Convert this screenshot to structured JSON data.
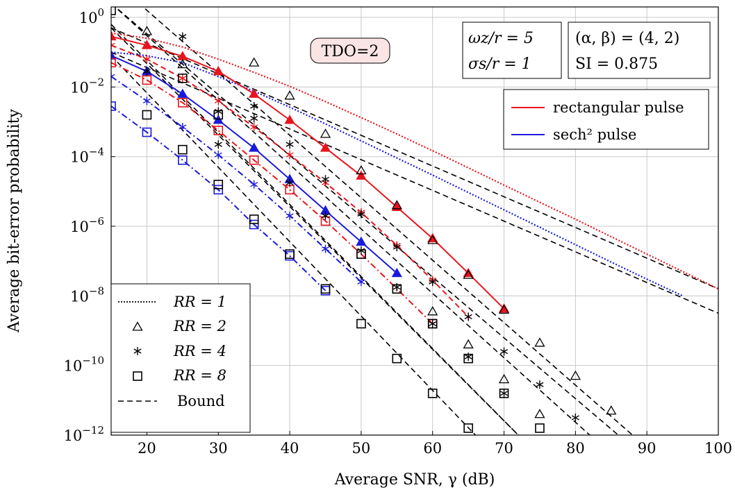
{
  "chart_data": {
    "type": "line",
    "xlabel": "Average SNR, γ (dB)",
    "ylabel": "Average bit-error probability",
    "xlim": [
      15,
      100
    ],
    "ylim_exp": [
      -12,
      0.3
    ],
    "yscale": "log",
    "grid": true,
    "x_ticks": [
      "20",
      "30",
      "40",
      "50",
      "60",
      "70",
      "80",
      "90",
      "100"
    ],
    "x_tick_values": [
      20,
      30,
      40,
      50,
      60,
      70,
      80,
      90,
      100
    ],
    "y_ticks": [
      {
        "base": "10",
        "exp": "0",
        "value_exp": 0
      },
      {
        "base": "10",
        "exp": "−2",
        "value_exp": -2
      },
      {
        "base": "10",
        "exp": "−4",
        "value_exp": -4
      },
      {
        "base": "10",
        "exp": "−6",
        "value_exp": -6
      },
      {
        "base": "10",
        "exp": "−8",
        "value_exp": -8
      },
      {
        "base": "10",
        "exp": "−10",
        "value_exp": -10
      },
      {
        "base": "10",
        "exp": "−12",
        "value_exp": -12
      }
    ],
    "annotations": {
      "tdo": "TDO=2",
      "param1_line1": "ωz/r = 5",
      "param1_line2": "σs/r = 1",
      "param2_line1": "(α, β) = (4, 2)",
      "param2_line2": "SI = 0.875"
    },
    "legend_color": [
      {
        "label": "rectangular pulse",
        "color": "#e8141c"
      },
      {
        "label": "sech² pulse",
        "color": "#1a1adc"
      }
    ],
    "legend_marker": [
      {
        "label": "RR = 1",
        "style": "dotted"
      },
      {
        "label": "RR = 2",
        "style": "triangle"
      },
      {
        "label": "RR = 4",
        "style": "asterisk"
      },
      {
        "label": "RR = 8",
        "style": "square"
      },
      {
        "label": "Bound",
        "style": "dashed"
      }
    ],
    "series": [
      {
        "color": "#e8141c",
        "rr": "1",
        "dash": "dotted",
        "marker": "none",
        "x": [
          15,
          20,
          25,
          30,
          35,
          40,
          45,
          50,
          55,
          60,
          65,
          70,
          75,
          80,
          85,
          90,
          95,
          100
        ],
        "log_y": [
          -0.45,
          -0.6,
          -0.85,
          -1.2,
          -1.58,
          -1.98,
          -2.42,
          -2.88,
          -3.35,
          -3.83,
          -4.32,
          -4.82,
          -5.31,
          -5.8,
          -6.3,
          -6.8,
          -7.3,
          -7.8
        ]
      },
      {
        "color": "#1a1adc",
        "rr": "1",
        "dash": "dotted",
        "marker": "none",
        "x": [
          15,
          20,
          25,
          30,
          35,
          40,
          45,
          50,
          55,
          60,
          65,
          70,
          75,
          80,
          85,
          90,
          95
        ],
        "log_y": [
          -1.0,
          -1.1,
          -1.3,
          -1.7,
          -2.12,
          -2.58,
          -3.06,
          -3.55,
          -4.04,
          -4.53,
          -5.03,
          -5.53,
          -6.03,
          -6.53,
          -7.03,
          -7.52,
          -8.0
        ]
      },
      {
        "color": "#e8141c",
        "rr": "2",
        "dash": "solid",
        "marker": "triangle",
        "x": [
          15,
          20,
          25,
          30,
          35,
          40,
          45,
          50,
          55,
          60,
          65,
          70
        ],
        "log_y": [
          -0.55,
          -0.8,
          -1.12,
          -1.55,
          -2.2,
          -2.95,
          -3.75,
          -4.55,
          -5.45,
          -6.35,
          -7.35,
          -8.37
        ]
      },
      {
        "color": "#1a1adc",
        "rr": "2",
        "dash": "solid",
        "marker": "triangle",
        "x": [
          15,
          20,
          25,
          30,
          35,
          40,
          45,
          50,
          55
        ],
        "log_y": [
          -1.1,
          -1.55,
          -2.2,
          -2.95,
          -3.75,
          -4.65,
          -5.55,
          -6.45,
          -7.35
        ]
      },
      {
        "color": "#e8141c",
        "rr": "4",
        "dash": "dashed",
        "marker": "asterisk",
        "x": [
          15,
          20,
          25,
          30,
          35,
          40,
          45,
          50,
          55,
          60,
          65
        ],
        "log_y": [
          -0.8,
          -1.2,
          -1.75,
          -2.4,
          -3.15,
          -3.95,
          -4.75,
          -5.6,
          -6.55,
          -7.55,
          -8.6
        ]
      },
      {
        "color": "#1a1adc",
        "rr": "4",
        "dash": "dashdot",
        "marker": "asterisk",
        "x": [
          15,
          20,
          25,
          30,
          35,
          40,
          45,
          50
        ],
        "log_y": [
          -1.7,
          -2.4,
          -3.15,
          -3.95,
          -4.8,
          -5.7,
          -6.65,
          -7.6
        ]
      },
      {
        "color": "#e8141c",
        "rr": "8",
        "dash": "dashdot",
        "marker": "square",
        "x": [
          15,
          20,
          25,
          30,
          35,
          40,
          45,
          50,
          55,
          60
        ],
        "log_y": [
          -1.3,
          -1.8,
          -2.45,
          -3.25,
          -4.1,
          -4.95,
          -5.85,
          -6.8,
          -7.8,
          -8.8
        ]
      },
      {
        "color": "#1a1adc",
        "rr": "8",
        "dash": "dashdot",
        "marker": "square",
        "x": [
          15,
          20,
          25,
          30,
          35,
          40,
          45
        ],
        "log_y": [
          -2.55,
          -3.3,
          -4.1,
          -4.95,
          -5.95,
          -6.85,
          -7.85
        ]
      }
    ],
    "bounds": [
      {
        "x": [
          15,
          100
        ],
        "log_y": [
          -0.3,
          -7.8
        ]
      },
      {
        "x": [
          15,
          100
        ],
        "log_y": [
          -1.0,
          -8.5
        ]
      },
      {
        "x": [
          15,
          86
        ],
        "log_y": [
          0.4,
          -12
        ]
      },
      {
        "x": [
          15,
          72
        ],
        "log_y": [
          -0.3,
          -12
        ]
      },
      {
        "x": [
          15,
          88
        ],
        "log_y": [
          1.1,
          -12
        ]
      },
      {
        "x": [
          15,
          82
        ],
        "log_y": [
          0.4,
          -12
        ]
      },
      {
        "x": [
          15,
          72
        ],
        "log_y": [
          -0.2,
          -12
        ]
      },
      {
        "x": [
          15,
          66
        ],
        "log_y": [
          -1.1,
          -12
        ]
      }
    ],
    "black_markers": [
      {
        "marker": "triangle",
        "points": [
          [
            20,
            -0.4
          ],
          [
            25,
            -1.35
          ],
          [
            30,
            0.4
          ],
          [
            35,
            -1.3
          ],
          [
            40,
            -2.25
          ],
          [
            45,
            -3.35
          ],
          [
            50,
            -4.4
          ],
          [
            55,
            -5.4
          ],
          [
            60,
            -6.4
          ],
          [
            65,
            -7.4
          ],
          [
            70,
            -8.4
          ],
          [
            75,
            -9.35
          ],
          [
            80,
            -10.3
          ],
          [
            85,
            -11.3
          ],
          [
            60,
            -8.45
          ],
          [
            65,
            -9.4
          ],
          [
            70,
            -10.4
          ],
          [
            75,
            -11.4
          ]
        ]
      },
      {
        "marker": "asterisk",
        "points": [
          [
            20,
            -1.55
          ],
          [
            25,
            -0.55
          ],
          [
            30,
            -2.7
          ],
          [
            35,
            -2.55
          ],
          [
            40,
            -3.65
          ],
          [
            45,
            -4.65
          ],
          [
            50,
            -5.65
          ],
          [
            55,
            -6.6
          ],
          [
            60,
            -7.6
          ],
          [
            65,
            -8.6
          ],
          [
            70,
            -9.6
          ],
          [
            75,
            -10.55
          ],
          [
            80,
            -11.5
          ],
          [
            40,
            -4.75
          ],
          [
            45,
            -5.7
          ],
          [
            50,
            -6.7
          ],
          [
            55,
            -7.75
          ],
          [
            60,
            -8.8
          ],
          [
            65,
            -9.75
          ],
          [
            70,
            -10.8
          ],
          [
            35,
            -2.9
          ],
          [
            30,
            -3.65
          ]
        ]
      },
      {
        "marker": "square",
        "points": [
          [
            15,
            0.2
          ],
          [
            20,
            -2.8
          ],
          [
            25,
            -3.8
          ],
          [
            30,
            -2.8
          ],
          [
            30,
            -4.8
          ],
          [
            35,
            -5.8
          ],
          [
            40,
            -6.8
          ],
          [
            45,
            -7.8
          ],
          [
            50,
            -8.8
          ],
          [
            55,
            -9.8
          ],
          [
            60,
            -10.8
          ],
          [
            65,
            -11.8
          ],
          [
            25,
            -1.75
          ],
          [
            50,
            -6.8
          ],
          [
            55,
            -7.8
          ],
          [
            60,
            -8.8
          ],
          [
            65,
            -9.8
          ],
          [
            70,
            -10.8
          ],
          [
            75,
            -11.8
          ]
        ]
      }
    ]
  }
}
